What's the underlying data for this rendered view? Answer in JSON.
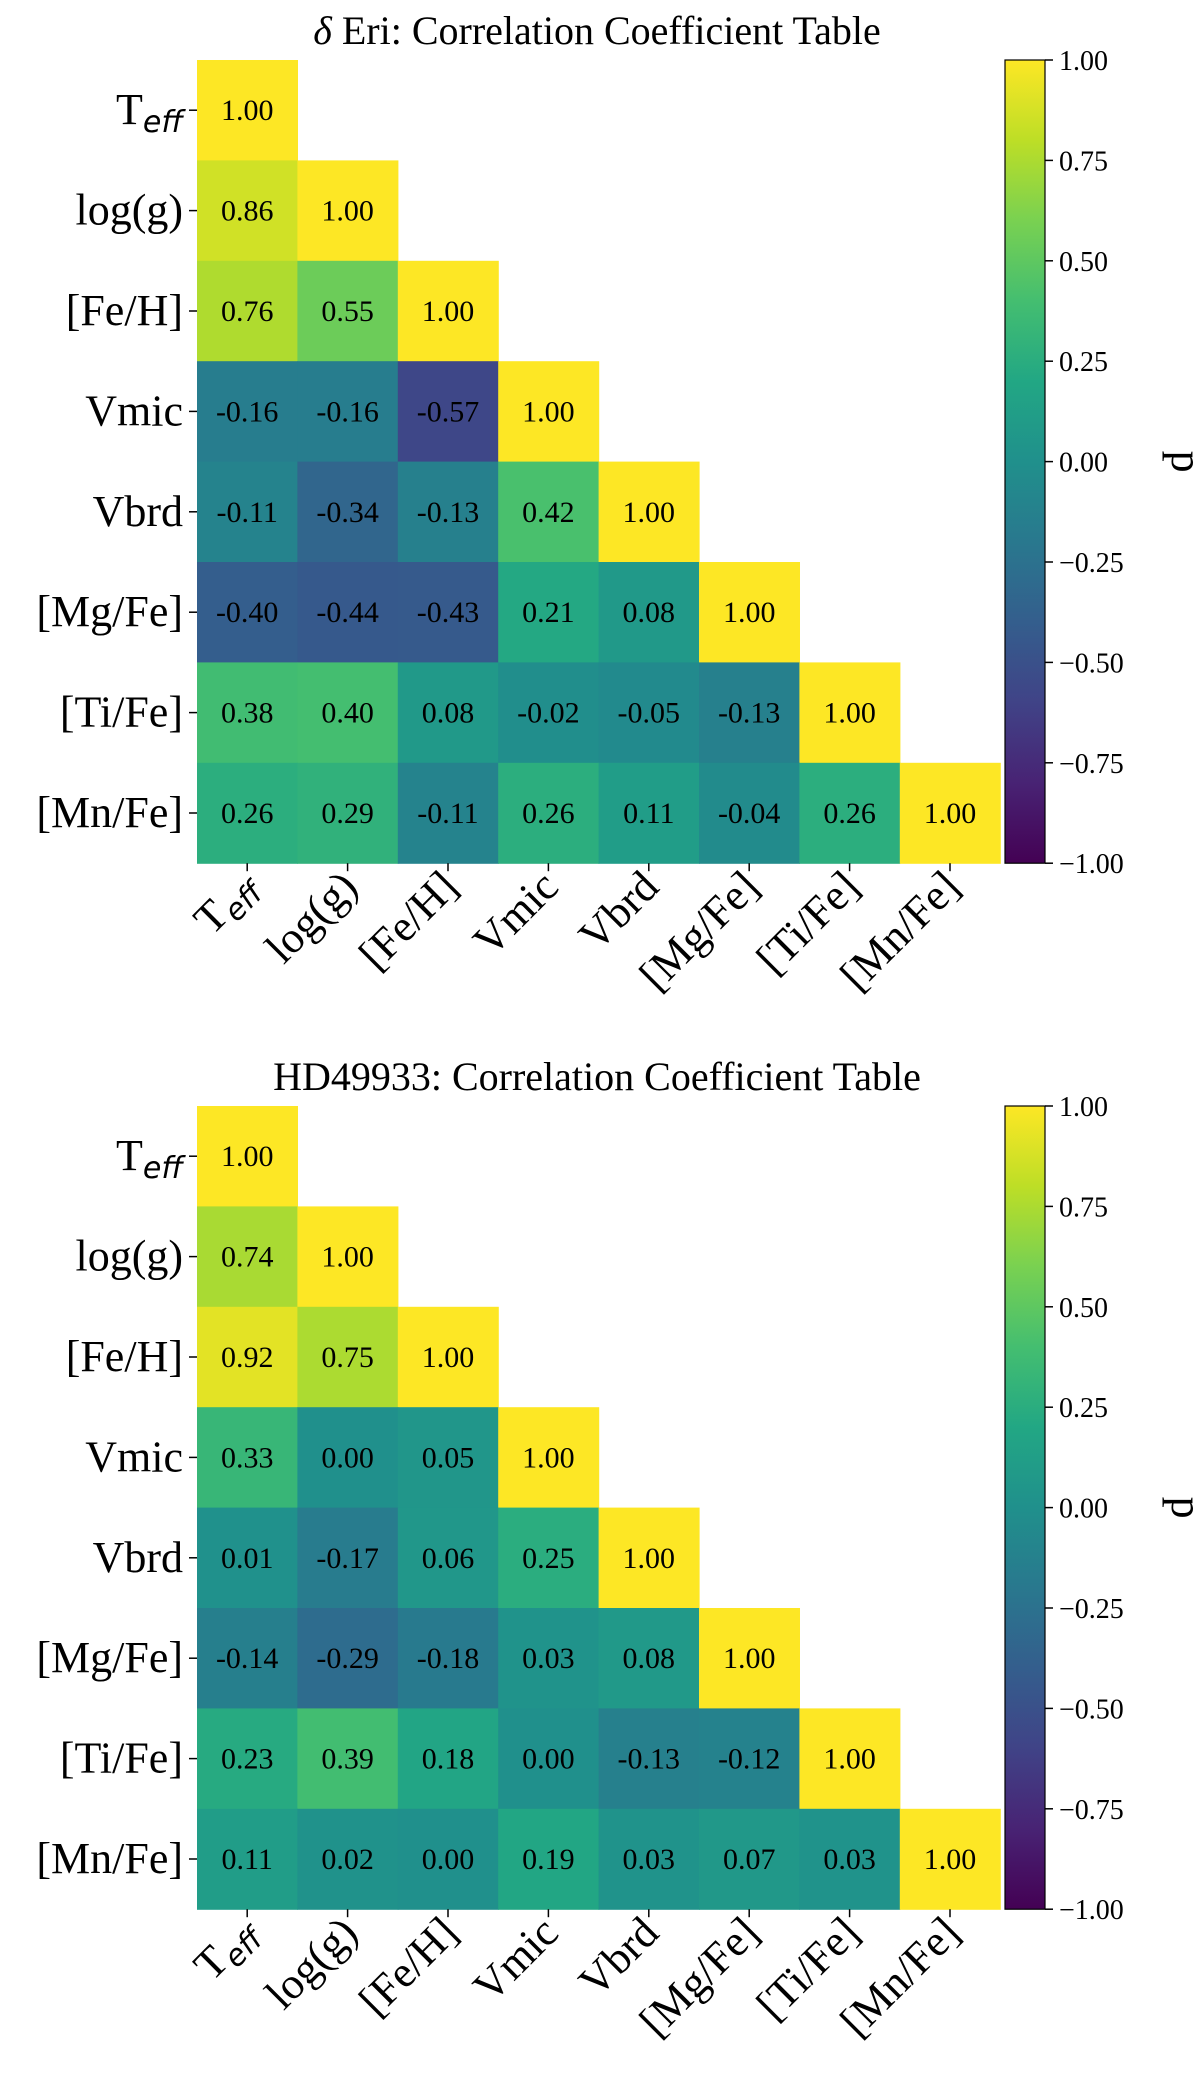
{
  "chart_data": [
    {
      "type": "heatmap",
      "title": "δ Eri: Correlation Coefficient Table",
      "title_prefix": "δ",
      "title_rest": " Eri: Correlation Coefficient Table",
      "row_labels": [
        "Teff",
        "log(g)",
        "[Fe/H]",
        "Vmic",
        "Vbrd",
        "[Mg/Fe]",
        "[Ti/Fe]",
        "[Mn/Fe]"
      ],
      "col_labels": [
        "Teff",
        "log(g)",
        "[Fe/H]",
        "Vmic",
        "Vbrd",
        "[Mg/Fe]",
        "[Ti/Fe]",
        "[Mn/Fe]"
      ],
      "values": [
        [
          1.0
        ],
        [
          0.86,
          1.0
        ],
        [
          0.76,
          0.55,
          1.0
        ],
        [
          -0.16,
          -0.16,
          -0.57,
          1.0
        ],
        [
          -0.11,
          -0.34,
          -0.13,
          0.42,
          1.0
        ],
        [
          -0.4,
          -0.44,
          -0.43,
          0.21,
          0.08,
          1.0
        ],
        [
          0.38,
          0.4,
          0.08,
          -0.02,
          -0.05,
          -0.13,
          1.0
        ],
        [
          0.26,
          0.29,
          -0.11,
          0.26,
          0.11,
          -0.04,
          0.26,
          1.0
        ]
      ],
      "colorbar": {
        "label": "p",
        "range": [
          -1.0,
          1.0
        ],
        "ticks": [
          "1.00",
          "0.75",
          "0.50",
          "0.25",
          "0.00",
          "−0.25",
          "−0.50",
          "−0.75",
          "−1.00"
        ],
        "colormap": "viridis"
      }
    },
    {
      "type": "heatmap",
      "title": "HD49933: Correlation Coefficient Table",
      "title_prefix": "",
      "title_rest": "HD49933: Correlation Coefficient Table",
      "row_labels": [
        "Teff",
        "log(g)",
        "[Fe/H]",
        "Vmic",
        "Vbrd",
        "[Mg/Fe]",
        "[Ti/Fe]",
        "[Mn/Fe]"
      ],
      "col_labels": [
        "Teff",
        "log(g)",
        "[Fe/H]",
        "Vmic",
        "Vbrd",
        "[Mg/Fe]",
        "[Ti/Fe]",
        "[Mn/Fe]"
      ],
      "values": [
        [
          1.0
        ],
        [
          0.74,
          1.0
        ],
        [
          0.92,
          0.75,
          1.0
        ],
        [
          0.33,
          -0.0,
          0.05,
          1.0
        ],
        [
          0.01,
          -0.17,
          0.06,
          0.25,
          1.0
        ],
        [
          -0.14,
          -0.29,
          -0.18,
          0.03,
          0.08,
          1.0
        ],
        [
          0.23,
          0.39,
          0.18,
          0.0,
          -0.13,
          -0.12,
          1.0
        ],
        [
          0.11,
          0.02,
          0.0,
          0.19,
          0.03,
          0.07,
          0.03,
          1.0
        ]
      ],
      "colorbar": {
        "label": "p",
        "range": [
          -1.0,
          1.0
        ],
        "ticks": [
          "1.00",
          "0.75",
          "0.50",
          "0.25",
          "0.00",
          "−0.25",
          "−0.50",
          "−0.75",
          "−1.00"
        ],
        "colormap": "viridis"
      }
    }
  ]
}
